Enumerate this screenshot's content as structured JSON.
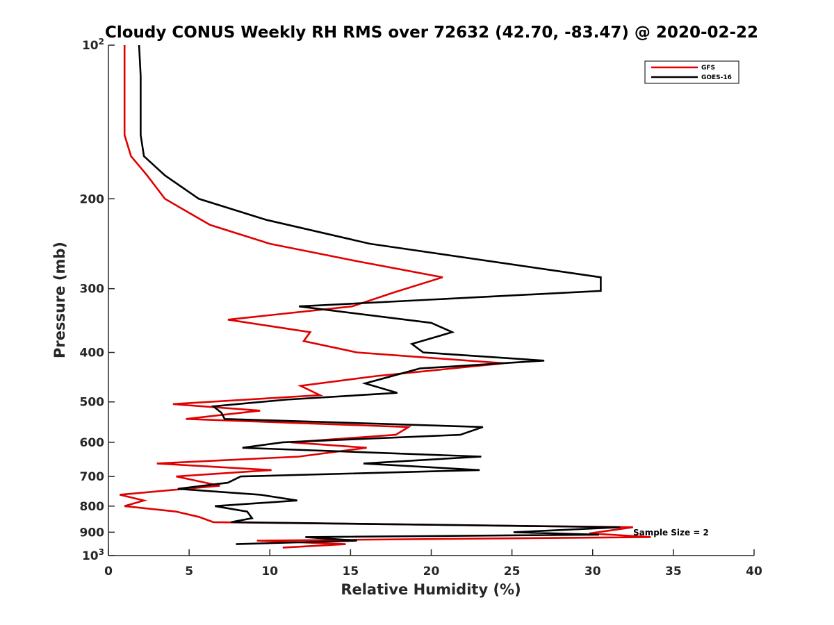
{
  "chart_data": {
    "type": "line",
    "title": "Cloudy CONUS Weekly RH RMS over 72632 (42.70, -83.47) @ 2020-02-22",
    "xlabel": "Relative Humidity (%)",
    "ylabel": "Pressure (mb)",
    "xlim": [
      0,
      40
    ],
    "ylim": [
      100,
      1000
    ],
    "yscale": "log",
    "y_reversed": true,
    "grid": false,
    "legend_position": "top-right",
    "annotation": "Sample Size = 2",
    "x_ticks": [
      "0",
      "5",
      "10",
      "15",
      "20",
      "25",
      "30",
      "35",
      "40"
    ],
    "y_ticks": [
      {
        "value": 100,
        "base": "10",
        "exp": "2"
      },
      {
        "value": 200,
        "label": "200"
      },
      {
        "value": 300,
        "label": "300"
      },
      {
        "value": 400,
        "label": "400"
      },
      {
        "value": 500,
        "label": "500"
      },
      {
        "value": 600,
        "label": "600"
      },
      {
        "value": 700,
        "label": "700"
      },
      {
        "value": 800,
        "label": "800"
      },
      {
        "value": 900,
        "label": "900"
      },
      {
        "value": 1000,
        "base": "10",
        "exp": "3"
      }
    ],
    "series": [
      {
        "name": "GFS",
        "color": "#e00000",
        "x": [
          1.0,
          1.0,
          1.0,
          1.4,
          2.4,
          3.5,
          6.3,
          10.0,
          15.4,
          20.7,
          17.7,
          15.1,
          7.4,
          12.5,
          12.1,
          15.4,
          24.5,
          16.6,
          11.9,
          13.1,
          4.0,
          9.4,
          4.8,
          18.6,
          17.8,
          11.3,
          16.0,
          11.8,
          3.0,
          10.1,
          4.2,
          6.9,
          0.7,
          2.2,
          1.0,
          4.2,
          5.6,
          6.5,
          32.5,
          29.8,
          33.6,
          9.2,
          14.7,
          10.8
        ],
        "y": [
          100,
          130,
          150,
          165,
          180,
          200,
          225,
          245,
          265,
          285,
          305,
          325,
          345,
          365,
          380,
          400,
          420,
          445,
          465,
          485,
          505,
          520,
          540,
          560,
          580,
          600,
          615,
          640,
          660,
          680,
          700,
          730,
          760,
          780,
          800,
          820,
          840,
          860,
          880,
          905,
          920,
          935,
          950,
          965
        ]
      },
      {
        "name": "GOES-16",
        "color": "#000000",
        "x": [
          1.9,
          2.0,
          2.0,
          2.2,
          3.5,
          5.6,
          9.8,
          16.2,
          30.5,
          30.5,
          11.8,
          20.0,
          21.3,
          18.8,
          19.5,
          27.0,
          19.3,
          15.9,
          17.9,
          11.0,
          6.5,
          7.0,
          7.2,
          23.2,
          21.8,
          10.8,
          8.3,
          23.1,
          15.8,
          23.0,
          8.2,
          7.4,
          4.3,
          9.4,
          11.7,
          6.6,
          8.6,
          8.9,
          7.6,
          31.7,
          25.1,
          30.4,
          12.2,
          15.4,
          7.9
        ],
        "y": [
          100,
          115,
          150,
          165,
          180,
          200,
          220,
          245,
          285,
          303,
          325,
          350,
          365,
          385,
          400,
          415,
          430,
          460,
          480,
          495,
          510,
          525,
          540,
          560,
          580,
          600,
          615,
          640,
          660,
          680,
          700,
          720,
          740,
          760,
          780,
          800,
          820,
          845,
          860,
          880,
          900,
          910,
          920,
          935,
          950
        ]
      }
    ]
  }
}
